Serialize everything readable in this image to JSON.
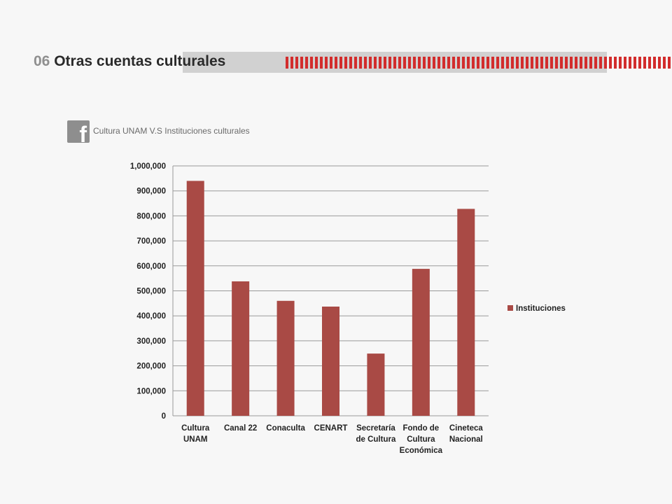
{
  "header": {
    "number": "06",
    "title": "Otras cuentas culturales"
  },
  "subheader": {
    "icon": "facebook-icon",
    "text": "Cultura UNAM V.S Instituciones culturales"
  },
  "colors": {
    "bar": "#a94a45",
    "accent_red": "#d22c2c",
    "grid": "#9a9a9a"
  },
  "chart_data": {
    "type": "bar",
    "categories": [
      [
        "Cultura",
        "UNAM"
      ],
      [
        "Canal 22"
      ],
      [
        "Conaculta"
      ],
      [
        "CENART"
      ],
      [
        "Secretaría",
        "de Cultura"
      ],
      [
        "Fondo de",
        "Cultura",
        "Económica"
      ],
      [
        "Cineteca",
        "Nacional"
      ]
    ],
    "series": [
      {
        "name": "Instituciones",
        "values": [
          940000,
          538000,
          460000,
          437000,
          249000,
          588000,
          828000
        ]
      }
    ],
    "ylim": [
      0,
      1000000
    ],
    "yticks": [
      0,
      100000,
      200000,
      300000,
      400000,
      500000,
      600000,
      700000,
      800000,
      900000,
      1000000
    ],
    "ytick_labels": [
      "0",
      "100,000",
      "200,000",
      "300,000",
      "400,000",
      "500,000",
      "600,000",
      "700,000",
      "800,000",
      "900,000",
      "1,000,000"
    ],
    "grid": true,
    "legend_position": "right"
  }
}
